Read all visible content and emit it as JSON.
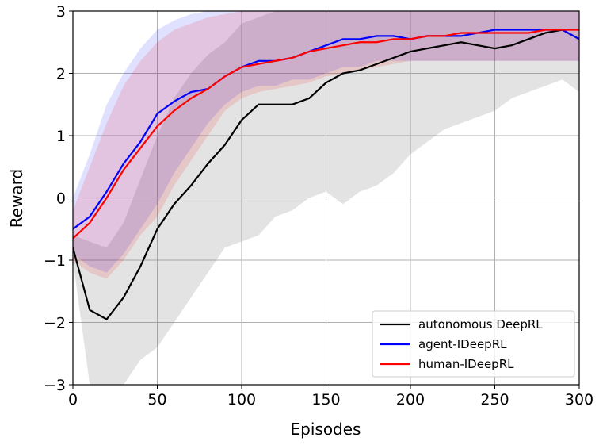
{
  "chart_data": {
    "type": "line",
    "xlabel": "Episodes",
    "ylabel": "Reward",
    "x": [
      0,
      10,
      20,
      30,
      40,
      50,
      60,
      70,
      80,
      90,
      100,
      110,
      120,
      130,
      140,
      150,
      160,
      170,
      180,
      190,
      200,
      210,
      220,
      230,
      240,
      250,
      260,
      270,
      280,
      290,
      300
    ],
    "series": [
      {
        "name": "autonomous DeepRL",
        "color": "#000000",
        "band_color": "#808080",
        "values": [
          -0.8,
          -1.8,
          -1.95,
          -1.6,
          -1.1,
          -0.5,
          -0.1,
          0.2,
          0.55,
          0.85,
          1.25,
          1.5,
          1.5,
          1.5,
          1.6,
          1.85,
          2.0,
          2.05,
          2.15,
          2.25,
          2.35,
          2.4,
          2.45,
          2.5,
          2.45,
          2.4,
          2.45,
          2.55,
          2.65,
          2.7,
          2.55
        ],
        "lower": [
          -1.0,
          -3.0,
          -3.0,
          -3.0,
          -2.6,
          -2.4,
          -2.0,
          -1.6,
          -1.2,
          -0.8,
          -0.7,
          -0.6,
          -0.3,
          -0.2,
          0,
          0.1,
          -0.1,
          0.1,
          0.2,
          0.4,
          0.7,
          0.9,
          1.1,
          1.2,
          1.3,
          1.4,
          1.6,
          1.7,
          1.8,
          1.9,
          1.7
        ],
        "upper": [
          -0.6,
          -0.7,
          -0.8,
          -0.4,
          0.3,
          1.0,
          1.6,
          2.0,
          2.3,
          2.5,
          2.8,
          2.9,
          3,
          3,
          3,
          3,
          3,
          3,
          3,
          3,
          3,
          3,
          3,
          3,
          3,
          3,
          3,
          3,
          3,
          3,
          3
        ]
      },
      {
        "name": "agent-IDeepRL",
        "color": "#0000ff",
        "band_color": "#0000ff",
        "values": [
          -0.5,
          -0.3,
          0.1,
          0.55,
          0.9,
          1.35,
          1.55,
          1.7,
          1.75,
          1.95,
          2.1,
          2.2,
          2.2,
          2.25,
          2.35,
          2.45,
          2.55,
          2.55,
          2.6,
          2.6,
          2.55,
          2.6,
          2.6,
          2.6,
          2.65,
          2.7,
          2.7,
          2.7,
          2.7,
          2.7,
          2.55
        ],
        "lower": [
          -0.9,
          -1.1,
          -1.2,
          -0.9,
          -0.5,
          -0.1,
          0.4,
          0.8,
          1.2,
          1.5,
          1.7,
          1.8,
          1.8,
          1.9,
          1.9,
          2.0,
          2.1,
          2.1,
          2.2,
          2.2,
          2.2,
          2.2,
          2.2,
          2.2,
          2.2,
          2.2,
          2.2,
          2.2,
          2.2,
          2.2,
          2.2
        ],
        "upper": [
          0,
          0.7,
          1.5,
          2.0,
          2.4,
          2.7,
          2.85,
          2.95,
          3,
          3,
          3,
          3,
          3,
          3,
          3,
          3,
          3,
          3,
          3,
          3,
          3,
          3,
          3,
          3,
          3,
          3,
          3,
          3,
          3,
          3,
          3
        ]
      },
      {
        "name": "human-IDeepRL",
        "color": "#ff0000",
        "band_color": "#ff0000",
        "values": [
          -0.65,
          -0.4,
          0,
          0.45,
          0.8,
          1.15,
          1.4,
          1.6,
          1.75,
          1.95,
          2.1,
          2.15,
          2.2,
          2.25,
          2.35,
          2.4,
          2.45,
          2.5,
          2.5,
          2.55,
          2.55,
          2.6,
          2.6,
          2.65,
          2.65,
          2.65,
          2.65,
          2.65,
          2.7,
          2.7,
          2.7
        ],
        "lower": [
          -1.0,
          -1.2,
          -1.3,
          -1.0,
          -0.6,
          -0.3,
          0.2,
          0.6,
          1.0,
          1.4,
          1.6,
          1.7,
          1.75,
          1.8,
          1.85,
          1.95,
          2.0,
          2.05,
          2.1,
          2.15,
          2.2,
          2.2,
          2.2,
          2.2,
          2.2,
          2.2,
          2.2,
          2.2,
          2.2,
          2.2,
          2.2
        ],
        "upper": [
          -0.2,
          0.5,
          1.2,
          1.8,
          2.2,
          2.5,
          2.7,
          2.8,
          2.9,
          2.95,
          3,
          3,
          3,
          3,
          3,
          3,
          3,
          3,
          3,
          3,
          3,
          3,
          3,
          3,
          3,
          3,
          3,
          3,
          3,
          3,
          3
        ]
      }
    ],
    "xlim": [
      0,
      300
    ],
    "xticks": [
      0,
      50,
      100,
      150,
      200,
      250,
      300
    ],
    "ylim": [
      -3,
      3
    ],
    "yticks": [
      {
        "value": -3,
        "label": "−3"
      },
      {
        "value": -2,
        "label": "−2"
      },
      {
        "value": -1,
        "label": "−1"
      },
      0,
      1,
      2,
      3
    ],
    "grid": true,
    "legend": "lower right"
  }
}
